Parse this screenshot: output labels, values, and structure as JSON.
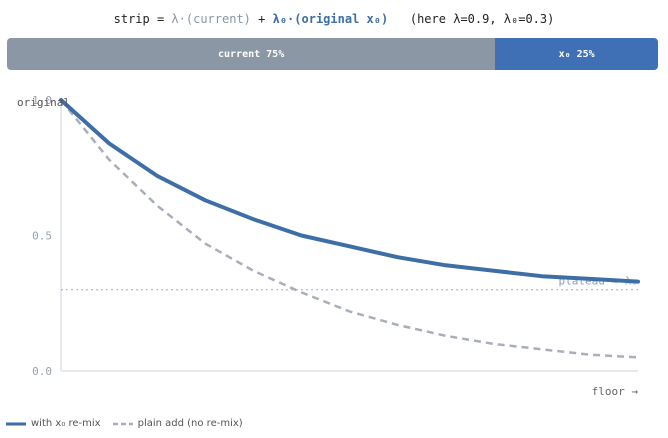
{
  "formula": {
    "prefix": "strip = ",
    "lambda_term": "λ·(current)",
    "plus": " + ",
    "lambda0_term": "λ₀·(original x₀)",
    "note": "   (here λ=0.9, λ₀=0.3)"
  },
  "strip": {
    "segments": [
      {
        "label": "current 75%",
        "fraction": 0.75,
        "color": "#8b97a5"
      },
      {
        "label": "x₀ 25%",
        "fraction": 0.25,
        "color": "#3f6fb4"
      }
    ]
  },
  "chart_data": {
    "type": "line",
    "x": [
      0,
      1,
      2,
      3,
      4,
      5,
      6,
      7,
      8,
      9,
      10,
      11,
      12
    ],
    "series": [
      {
        "name": "with x₀ re-mix",
        "color": "#3d6fa6",
        "style": "solid",
        "values": [
          1.0,
          0.84,
          0.72,
          0.63,
          0.56,
          0.5,
          0.46,
          0.42,
          0.39,
          0.37,
          0.35,
          0.34,
          0.33
        ]
      },
      {
        "name": "plain add (no re-mix)",
        "color": "#a9aebb",
        "style": "dashed",
        "values": [
          1.0,
          0.78,
          0.61,
          0.47,
          0.37,
          0.29,
          0.22,
          0.17,
          0.13,
          0.1,
          0.08,
          0.06,
          0.05
        ]
      }
    ],
    "yticks": [
      0.0,
      0.5,
      1.0
    ],
    "ytick_labels": [
      "0.0",
      "0.5",
      "1.0"
    ],
    "ylim": [
      0,
      1
    ],
    "xlim": [
      0,
      12
    ],
    "xlabel": "floor →",
    "plateau": {
      "value": 0.3,
      "label": "plateau ≈ λ₀"
    },
    "annotation_start": "original",
    "legend_position": "bottom-left",
    "grid": false
  }
}
